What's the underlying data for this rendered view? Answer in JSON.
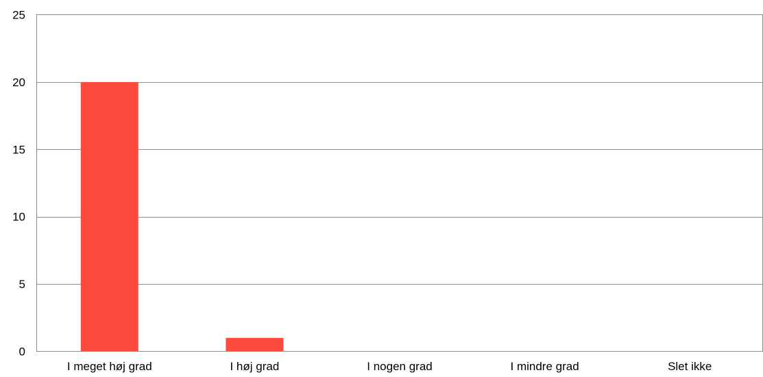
{
  "chart_data": {
    "type": "bar",
    "title": "",
    "xlabel": "",
    "ylabel": "",
    "categories": [
      "I meget høj grad",
      "I høj grad",
      "I nogen grad",
      "I mindre grad",
      "Slet ikke"
    ],
    "values": [
      20,
      1,
      0,
      0,
      0
    ],
    "ylim": [
      0,
      25
    ],
    "yticks": [
      "0",
      "5",
      "10",
      "15",
      "20",
      "25"
    ],
    "grid": true,
    "legend": "none",
    "bar_color": "#fa4b3c"
  }
}
